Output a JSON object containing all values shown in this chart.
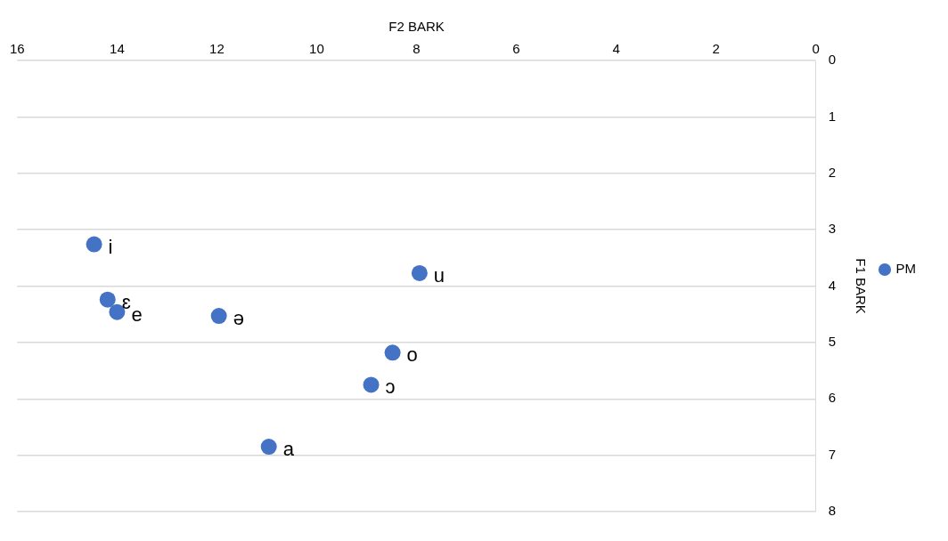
{
  "chart_data": {
    "type": "scatter",
    "xlabel": "F2 BARK",
    "ylabel": "F1 BARK",
    "x": [
      14.46,
      14.19,
      14.0,
      11.96,
      7.94,
      8.48,
      8.91,
      10.96
    ],
    "series": [
      {
        "name": "PM",
        "color": "#4472c4",
        "values": [
          3.26,
          4.24,
          4.46,
          4.53,
          3.77,
          5.18,
          5.75,
          6.85
        ]
      }
    ],
    "xlim": [
      16,
      0
    ],
    "xticks": [
      16,
      14,
      12,
      10,
      8,
      6,
      4,
      2,
      0
    ],
    "ylim": [
      8,
      0
    ],
    "yticks": [
      0,
      1,
      2,
      3,
      4,
      5,
      6,
      7,
      8
    ],
    "grid": "y",
    "legend": "right",
    "marker": "circle",
    "annotations": [
      {
        "text": "i",
        "x": 14.46,
        "y": 3.26
      },
      {
        "text": "ɛ",
        "x": 14.19,
        "y": 4.24
      },
      {
        "text": "e",
        "x": 14.0,
        "y": 4.46
      },
      {
        "text": "ə",
        "x": 11.96,
        "y": 4.53
      },
      {
        "text": "u",
        "x": 7.94,
        "y": 3.77
      },
      {
        "text": "o",
        "x": 8.48,
        "y": 5.18
      },
      {
        "text": "ɔ",
        "x": 8.91,
        "y": 5.75
      },
      {
        "text": "a",
        "x": 10.96,
        "y": 6.85
      }
    ]
  }
}
